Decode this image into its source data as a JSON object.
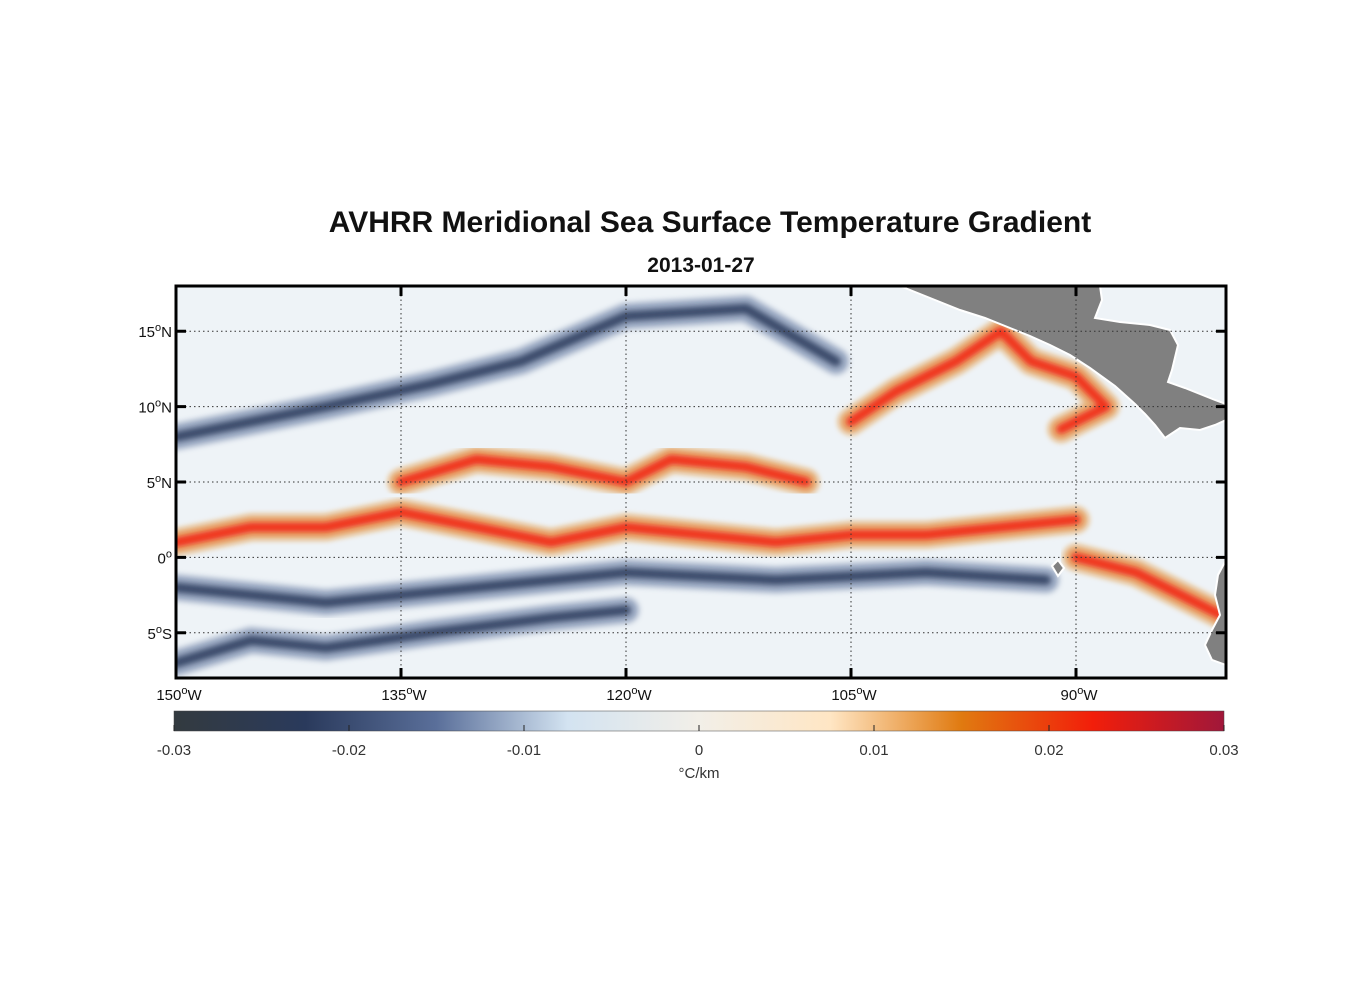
{
  "title": "AVHRR Meridional Sea Surface Temperature Gradient",
  "date": "2013-01-27",
  "map": {
    "lon_range": [
      -150,
      -80
    ],
    "lat_range": [
      -8,
      18
    ],
    "land_color": "#808080",
    "grid_style": "dotted",
    "lon_ticks": [
      {
        "value": -150,
        "deg": "150",
        "suffix": "W"
      },
      {
        "value": -135,
        "deg": "135",
        "suffix": "W"
      },
      {
        "value": -120,
        "deg": "120",
        "suffix": "W"
      },
      {
        "value": -105,
        "deg": "105",
        "suffix": "W"
      },
      {
        "value": -90,
        "deg": "90",
        "suffix": "W"
      }
    ],
    "lat_ticks": [
      {
        "value": 15,
        "deg": "15",
        "suffix": "N"
      },
      {
        "value": 10,
        "deg": "10",
        "suffix": "N"
      },
      {
        "value": 5,
        "deg": "5",
        "suffix": "N"
      },
      {
        "value": 0,
        "deg": "0",
        "suffix": ""
      },
      {
        "value": -5,
        "deg": "5",
        "suffix": "S"
      }
    ],
    "features": [
      {
        "name": "equatorial-front",
        "sign": "positive",
        "points": [
          [
            -150,
            1
          ],
          [
            -145,
            2
          ],
          [
            -140,
            2
          ],
          [
            -135,
            3
          ],
          [
            -130,
            2
          ],
          [
            -125,
            1
          ],
          [
            -120,
            2
          ],
          [
            -115,
            1.5
          ],
          [
            -110,
            1
          ],
          [
            -105,
            1.5
          ],
          [
            -100,
            1.5
          ],
          [
            -95,
            2
          ],
          [
            -90,
            2.5
          ]
        ]
      },
      {
        "name": "north-warm-band",
        "sign": "positive",
        "points": [
          [
            -135,
            5
          ],
          [
            -130,
            6.5
          ],
          [
            -125,
            6
          ],
          [
            -120,
            5
          ],
          [
            -117,
            6.5
          ],
          [
            -112,
            6
          ],
          [
            -108,
            5
          ]
        ]
      },
      {
        "name": "eddy-field-near-coast",
        "sign": "positive",
        "points": [
          [
            -105,
            9
          ],
          [
            -102,
            11
          ],
          [
            -98,
            13
          ],
          [
            -95,
            15
          ],
          [
            -93,
            13
          ],
          [
            -90,
            12
          ],
          [
            -88,
            10
          ],
          [
            -91,
            8.5
          ]
        ]
      },
      {
        "name": "peru-coast-front",
        "sign": "positive",
        "points": [
          [
            -90,
            0
          ],
          [
            -86,
            -1
          ],
          [
            -82,
            -3
          ],
          [
            -80,
            -4
          ]
        ]
      },
      {
        "name": "south-equatorial-cold",
        "sign": "negative",
        "points": [
          [
            -150,
            -2
          ],
          [
            -140,
            -3
          ],
          [
            -130,
            -2
          ],
          [
            -120,
            -1
          ],
          [
            -110,
            -1.5
          ],
          [
            -100,
            -1
          ],
          [
            -92,
            -1.5
          ]
        ]
      },
      {
        "name": "north-cold-band",
        "sign": "negative",
        "points": [
          [
            -150,
            8
          ],
          [
            -145,
            9
          ],
          [
            -140,
            10
          ],
          [
            -133,
            11.5
          ],
          [
            -127,
            13
          ],
          [
            -120,
            16
          ],
          [
            -112,
            16.5
          ],
          [
            -106,
            13
          ]
        ]
      },
      {
        "name": "southern-cold-band",
        "sign": "negative",
        "points": [
          [
            -150,
            -7
          ],
          [
            -145,
            -5.5
          ],
          [
            -140,
            -6
          ],
          [
            -133,
            -5
          ],
          [
            -125,
            -4
          ],
          [
            -120,
            -3.5
          ]
        ]
      }
    ]
  },
  "colorbar": {
    "min": -0.03,
    "max": 0.03,
    "ticks": [
      "-0.03",
      "-0.02",
      "-0.01",
      "0",
      "0.01",
      "0.02",
      "0.03"
    ],
    "unit_label": "°C/km",
    "colors": [
      "#333a3f",
      "#2a3a5c",
      "#5a6f9a",
      "#d3e3f1",
      "#f2efe8",
      "#ffe6c4",
      "#e07a10",
      "#f21e0a",
      "#a0173a"
    ]
  }
}
